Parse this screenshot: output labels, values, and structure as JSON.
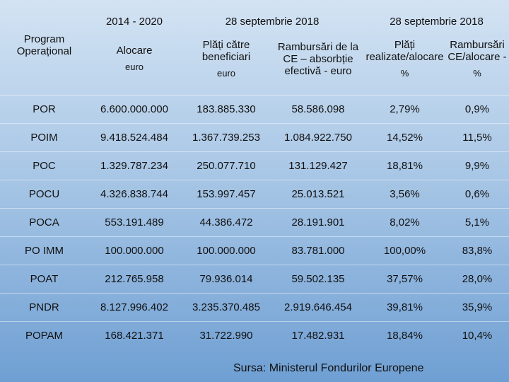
{
  "header": {
    "periods": [
      "2014 - 2020",
      "28 septembrie 2018",
      "28 septembrie 2018"
    ],
    "columns": [
      {
        "label": "Program Operațional"
      },
      {
        "label": "Alocare",
        "unit": "euro"
      },
      {
        "label": "Plăți către beneficiari",
        "unit": "euro"
      },
      {
        "label": "Rambursări de la CE – absorbție efectivă - euro"
      },
      {
        "label": "Plăți realizate/alocare",
        "unit": "%"
      },
      {
        "label": "Rambursări CE/alocare -",
        "unit": "%"
      }
    ]
  },
  "table": {
    "rows": [
      [
        "POR",
        "6.600.000.000",
        "183.885.330",
        "58.586.098",
        "2,79%",
        "0,9%"
      ],
      [
        "POIM",
        "9.418.524.484",
        "1.367.739.253",
        "1.084.922.750",
        "14,52%",
        "11,5%"
      ],
      [
        "POC",
        "1.329.787.234",
        "250.077.710",
        "131.129.427",
        "18,81%",
        "9,9%"
      ],
      [
        "POCU",
        "4.326.838.744",
        "153.997.457",
        "25.013.521",
        "3,56%",
        "0,6%"
      ],
      [
        "POCA",
        "553.191.489",
        "44.386.472",
        "28.191.901",
        "8,02%",
        "5,1%"
      ],
      [
        "PO IMM",
        "100.000.000",
        "100.000.000",
        "83.781.000",
        "100,00%",
        "83,8%"
      ],
      [
        "POAT",
        "212.765.958",
        "79.936.014",
        "59.502.135",
        "37,57%",
        "28,0%"
      ],
      [
        "PNDR",
        "8.127.996.402",
        "3.235.370.485",
        "2.919.646.454",
        "39,81%",
        "35,9%"
      ],
      [
        "POPAM",
        "168.421.371",
        "31.722.990",
        "17.482.931",
        "18,84%",
        "10,4%"
      ]
    ]
  },
  "source": "Sursa: Ministerul Fondurilor Europene"
}
